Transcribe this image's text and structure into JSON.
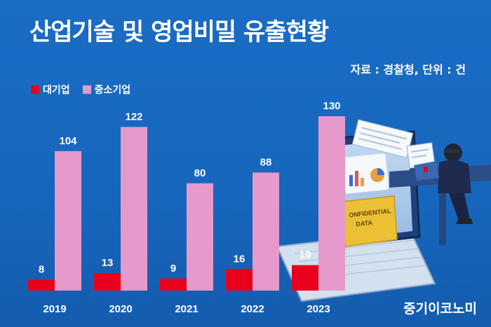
{
  "title": "산업기술 및 영업비밀 유출현황",
  "source_note": "자료 : 경찰청, 단위 : 건",
  "brand": "중기이코노미",
  "chart_data": {
    "type": "bar",
    "categories": [
      "2019",
      "2020",
      "2021",
      "2022",
      "2023"
    ],
    "series": [
      {
        "name": "대기업",
        "values": [
          8,
          13,
          9,
          16,
          19
        ],
        "color": "#e8001c"
      },
      {
        "name": "중소기업",
        "values": [
          104,
          122,
          80,
          88,
          130
        ],
        "color": "#e59acb"
      }
    ],
    "ylim": [
      0,
      130
    ],
    "grid": false,
    "legend_position": "top-left"
  }
}
